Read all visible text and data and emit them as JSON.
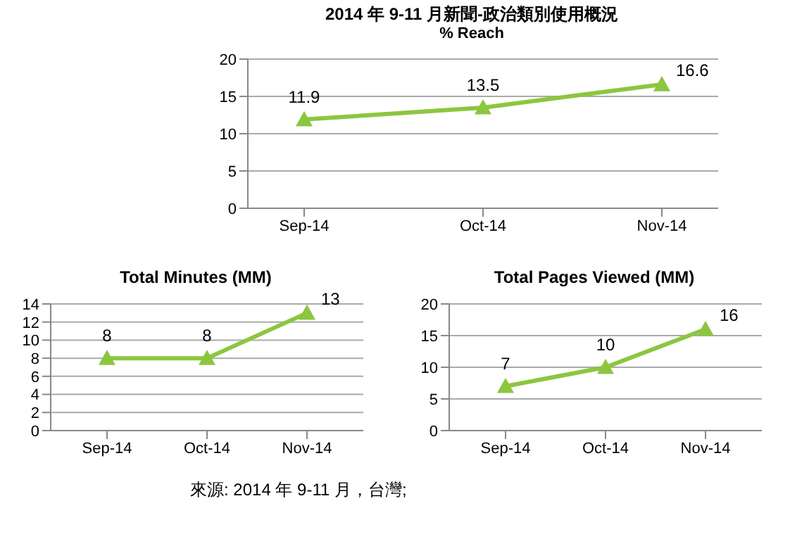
{
  "chart_data": [
    {
      "type": "line",
      "title": "2014 年 9-11 月新聞-政治類別使用概況",
      "subtitle": "% Reach",
      "categories": [
        "Sep-14",
        "Oct-14",
        "Nov-14"
      ],
      "series": [
        {
          "color": "#8cc63f",
          "values": [
            11.9,
            13.5,
            16.6
          ]
        }
      ],
      "ylim": [
        0,
        20
      ],
      "yticks": [
        0,
        5,
        10,
        15,
        20
      ],
      "grid": "y",
      "marker": "triangle",
      "data_labels": true
    },
    {
      "type": "line",
      "title": "Total Minutes (MM)",
      "categories": [
        "Sep-14",
        "Oct-14",
        "Nov-14"
      ],
      "series": [
        {
          "color": "#8cc63f",
          "values": [
            8,
            8,
            13
          ]
        }
      ],
      "ylim": [
        0,
        14
      ],
      "yticks": [
        0,
        2,
        4,
        6,
        8,
        10,
        12,
        14
      ],
      "grid": "y",
      "marker": "triangle",
      "data_labels": true
    },
    {
      "type": "line",
      "title": "Total Pages Viewed (MM)",
      "categories": [
        "Sep-14",
        "Oct-14",
        "Nov-14"
      ],
      "series": [
        {
          "color": "#8cc63f",
          "values": [
            7,
            10,
            16
          ]
        }
      ],
      "ylim": [
        0,
        20
      ],
      "yticks": [
        0,
        5,
        10,
        15,
        20
      ],
      "grid": "y",
      "marker": "triangle",
      "data_labels": true,
      "annotations": [
        "來源: 2014 年 9-11 月，台灣;"
      ]
    }
  ]
}
